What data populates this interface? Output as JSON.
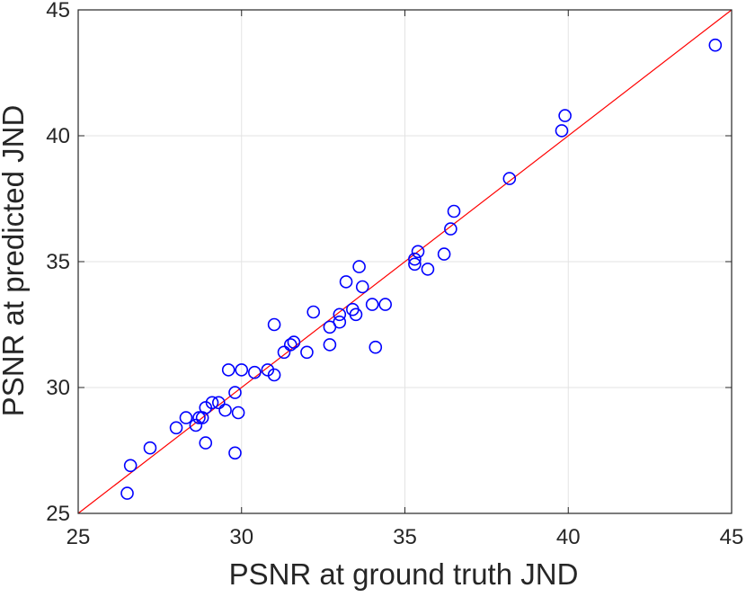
{
  "chart_data": {
    "type": "scatter",
    "title": "",
    "xlabel": "PSNR at ground truth JND",
    "ylabel": "PSNR at predicted JND",
    "xlim": [
      25,
      45
    ],
    "ylim": [
      25,
      45
    ],
    "xticks": [
      "25",
      "30",
      "35",
      "40",
      "45"
    ],
    "yticks": [
      "25",
      "30",
      "35",
      "40",
      "45"
    ],
    "grid": true,
    "marker_color": "#0000ff",
    "reference_line_color": "#ff0000",
    "reference_line": {
      "x": [
        25,
        45
      ],
      "y": [
        25,
        45
      ]
    },
    "series": [
      {
        "marker": "open-circle",
        "points": [
          [
            26.5,
            25.8
          ],
          [
            26.6,
            26.9
          ],
          [
            27.2,
            27.6
          ],
          [
            28.0,
            28.4
          ],
          [
            28.3,
            28.8
          ],
          [
            28.6,
            28.5
          ],
          [
            28.7,
            28.8
          ],
          [
            28.8,
            28.8
          ],
          [
            28.9,
            27.8
          ],
          [
            28.9,
            29.2
          ],
          [
            29.1,
            29.4
          ],
          [
            29.3,
            29.4
          ],
          [
            29.5,
            29.1
          ],
          [
            29.6,
            30.7
          ],
          [
            29.8,
            29.8
          ],
          [
            29.8,
            27.4
          ],
          [
            29.9,
            29.0
          ],
          [
            30.0,
            30.7
          ],
          [
            30.4,
            30.6
          ],
          [
            30.8,
            30.7
          ],
          [
            31.0,
            30.5
          ],
          [
            31.0,
            32.5
          ],
          [
            31.3,
            31.4
          ],
          [
            31.5,
            31.7
          ],
          [
            31.6,
            31.8
          ],
          [
            32.0,
            31.4
          ],
          [
            32.2,
            33.0
          ],
          [
            32.7,
            31.7
          ],
          [
            32.7,
            32.4
          ],
          [
            33.0,
            32.6
          ],
          [
            33.0,
            32.9
          ],
          [
            33.2,
            34.2
          ],
          [
            33.4,
            33.1
          ],
          [
            33.5,
            32.9
          ],
          [
            33.6,
            34.8
          ],
          [
            33.7,
            34.0
          ],
          [
            34.0,
            33.3
          ],
          [
            34.1,
            31.6
          ],
          [
            34.4,
            33.3
          ],
          [
            35.3,
            35.1
          ],
          [
            35.3,
            34.9
          ],
          [
            35.4,
            35.4
          ],
          [
            35.7,
            34.7
          ],
          [
            36.2,
            35.3
          ],
          [
            36.4,
            36.3
          ],
          [
            36.5,
            37.0
          ],
          [
            38.2,
            38.3
          ],
          [
            39.8,
            40.2
          ],
          [
            39.9,
            40.8
          ],
          [
            44.5,
            43.6
          ]
        ]
      }
    ]
  }
}
